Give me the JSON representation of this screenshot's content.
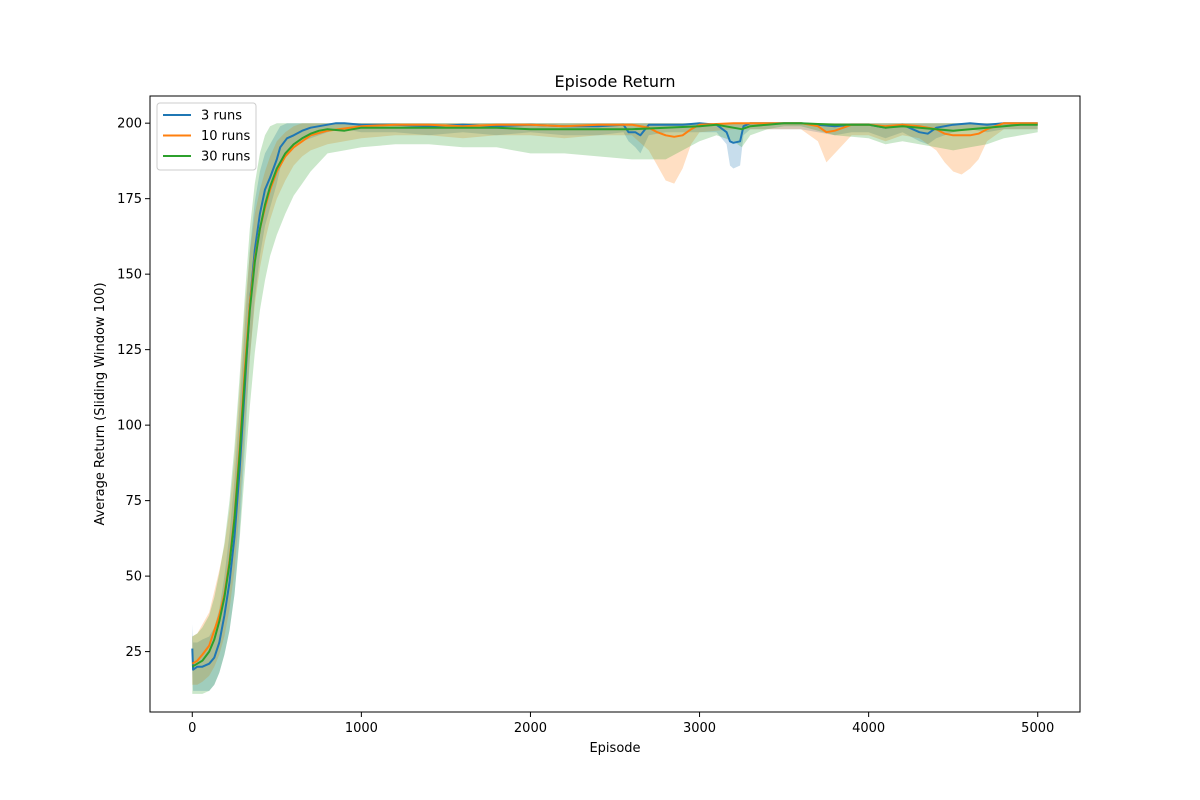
{
  "chart_data": {
    "type": "line",
    "title": "Episode Return",
    "xlabel": "Episode",
    "ylabel": "Average Return (Sliding Window 100)",
    "xlim": [
      -250,
      5250
    ],
    "ylim": [
      5,
      209
    ],
    "xticks": [
      0,
      1000,
      2000,
      3000,
      4000,
      5000
    ],
    "yticks": [
      25,
      50,
      75,
      100,
      125,
      150,
      175,
      200
    ],
    "grid": false,
    "legend_position": "top-left",
    "series": [
      {
        "name": "3 runs",
        "color": "#1f77b4",
        "x": [
          0,
          5,
          30,
          60,
          100,
          130,
          160,
          190,
          220,
          250,
          280,
          310,
          340,
          370,
          400,
          430,
          460,
          500,
          520,
          560,
          600,
          650,
          700,
          750,
          800,
          850,
          900,
          1000,
          1200,
          1400,
          1600,
          1800,
          2000,
          2200,
          2400,
          2550,
          2580,
          2620,
          2650,
          2700,
          2800,
          2900,
          3000,
          3100,
          3160,
          3180,
          3200,
          3240,
          3260,
          3300,
          3400,
          3600,
          3700,
          3800,
          3900,
          4000,
          4100,
          4200,
          4300,
          4350,
          4400,
          4500,
          4600,
          4700,
          4800,
          5000
        ],
        "mean": [
          26,
          19,
          20,
          20,
          21,
          23,
          28,
          37,
          48,
          63,
          85,
          112,
          140,
          158,
          170,
          178,
          182,
          188,
          192,
          195,
          196,
          197.5,
          198.5,
          199,
          199.5,
          200,
          200,
          199.5,
          199.5,
          199,
          199.5,
          199,
          199.5,
          199,
          199,
          199.5,
          197,
          197,
          196,
          199.5,
          199.5,
          199.5,
          200,
          199.5,
          197,
          194,
          193.5,
          194,
          199,
          200,
          200,
          200,
          199.5,
          199,
          199.5,
          199.5,
          198.5,
          199.5,
          197,
          196.5,
          198.5,
          199.5,
          200,
          199.5,
          200,
          200
        ],
        "lower": [
          18,
          12,
          12,
          12,
          12,
          14,
          18,
          24,
          32,
          44,
          64,
          92,
          122,
          142,
          156,
          166,
          172,
          180,
          185,
          190,
          192,
          194,
          195,
          196,
          197,
          198,
          198,
          197,
          197,
          196,
          197,
          196,
          197,
          196,
          196,
          197,
          194,
          192,
          190,
          196,
          197,
          197,
          197,
          197,
          193,
          186,
          185,
          186,
          196,
          198,
          198,
          198,
          197,
          196,
          197,
          197,
          195,
          197,
          194,
          193,
          195,
          197,
          198,
          197,
          198,
          198
        ],
        "upper": [
          34,
          28,
          28,
          29,
          30,
          33,
          39,
          50,
          64,
          82,
          106,
          132,
          158,
          174,
          184,
          190,
          193,
          197,
          199,
          200,
          200,
          200,
          200,
          200,
          200,
          200,
          200,
          200,
          200,
          200,
          200,
          200,
          200,
          200,
          200,
          200,
          200,
          200,
          200,
          200,
          200,
          200,
          200,
          200,
          200,
          200,
          200,
          200,
          200,
          200,
          200,
          200,
          200,
          200,
          200,
          200,
          200,
          200,
          200,
          200,
          200,
          200,
          200,
          200,
          200,
          200
        ]
      },
      {
        "name": "10 runs",
        "color": "#ff7f0e",
        "x": [
          0,
          30,
          60,
          100,
          130,
          160,
          190,
          220,
          250,
          280,
          310,
          340,
          370,
          400,
          430,
          460,
          500,
          550,
          600,
          650,
          700,
          800,
          1000,
          1200,
          1400,
          1600,
          1800,
          2000,
          2200,
          2400,
          2600,
          2700,
          2750,
          2800,
          2850,
          2900,
          2950,
          3000,
          3200,
          3400,
          3600,
          3700,
          3750,
          3800,
          3900,
          4000,
          4100,
          4200,
          4300,
          4400,
          4450,
          4500,
          4550,
          4600,
          4650,
          4700,
          4800,
          5000
        ],
        "mean": [
          21,
          22,
          24,
          27,
          32,
          37,
          44,
          55,
          70,
          92,
          118,
          140,
          155,
          165,
          172,
          178,
          184,
          189,
          192,
          194,
          196,
          197.5,
          199,
          199.5,
          199.5,
          199,
          199.5,
          199.5,
          199,
          199.5,
          199.5,
          198.5,
          197,
          196,
          195.5,
          196,
          198,
          199.5,
          200,
          200,
          200,
          199,
          197,
          197.5,
          199.5,
          199.5,
          199,
          199.5,
          199,
          198,
          196.5,
          196,
          196,
          196,
          196.5,
          198,
          200,
          200
        ],
        "lower": [
          14,
          14,
          15,
          17,
          20,
          24,
          30,
          39,
          52,
          72,
          98,
          122,
          140,
          152,
          161,
          168,
          175,
          181,
          186,
          189,
          191,
          193,
          195,
          196,
          196,
          195,
          196,
          196,
          195,
          196,
          196,
          191,
          186,
          181,
          180,
          185,
          193,
          197,
          198,
          198,
          198,
          194,
          187,
          190,
          196,
          196,
          194,
          196,
          195,
          191,
          187,
          184,
          183,
          185,
          188,
          194,
          198,
          198
        ],
        "upper": [
          30,
          31,
          34,
          38,
          45,
          52,
          60,
          72,
          89,
          112,
          138,
          157,
          170,
          178,
          184,
          189,
          194,
          197,
          199,
          200,
          200,
          200,
          200,
          200,
          200,
          200,
          200,
          200,
          200,
          200,
          200,
          200,
          200,
          200,
          200,
          200,
          200,
          200,
          200,
          200,
          200,
          200,
          200,
          200,
          200,
          200,
          200,
          200,
          200,
          200,
          200,
          200,
          200,
          200,
          200,
          200,
          200,
          200
        ]
      },
      {
        "name": "30 runs",
        "color": "#2ca02c",
        "x": [
          0,
          30,
          60,
          100,
          130,
          160,
          190,
          220,
          250,
          280,
          310,
          340,
          370,
          400,
          430,
          460,
          500,
          550,
          600,
          650,
          700,
          750,
          800,
          900,
          1000,
          1200,
          1400,
          1600,
          1800,
          2000,
          2200,
          2400,
          2600,
          2800,
          3000,
          3100,
          3200,
          3250,
          3300,
          3400,
          3500,
          3600,
          3800,
          4000,
          4100,
          4200,
          4300,
          4400,
          4500,
          4600,
          4700,
          4800,
          4900,
          5000
        ],
        "mean": [
          20,
          21,
          22,
          25,
          29,
          35,
          43,
          54,
          69,
          90,
          115,
          138,
          154,
          165,
          173,
          179,
          185,
          190,
          193,
          195,
          196.5,
          197.5,
          198,
          197.5,
          198.5,
          198.5,
          198.5,
          198.5,
          198.5,
          198,
          198,
          198,
          198,
          198.5,
          199,
          199.5,
          198.5,
          198,
          199,
          199.5,
          200,
          200,
          199.5,
          199.5,
          198.5,
          199,
          198.5,
          198,
          197.5,
          198,
          198.5,
          199,
          199.5,
          199.5
        ],
        "lower": [
          11,
          11,
          11,
          12,
          14,
          18,
          24,
          32,
          44,
          62,
          84,
          106,
          124,
          138,
          148,
          156,
          163,
          170,
          176,
          180,
          184,
          187,
          190,
          191,
          192,
          193,
          193,
          192,
          192,
          190,
          190,
          189,
          188,
          188,
          194,
          196,
          194,
          192,
          196,
          198,
          199,
          199,
          196,
          195,
          193,
          194,
          193,
          192,
          191,
          192,
          193,
          195,
          196,
          197
        ],
        "upper": [
          30,
          31,
          33,
          37,
          43,
          51,
          61,
          75,
          93,
          116,
          142,
          165,
          180,
          190,
          196,
          199,
          200,
          200,
          200,
          200,
          200,
          200,
          200,
          200,
          200,
          200,
          200,
          200,
          200,
          200,
          200,
          200,
          200,
          200,
          200,
          200,
          200,
          200,
          200,
          200,
          200,
          200,
          200,
          200,
          200,
          200,
          200,
          200,
          200,
          200,
          200,
          200,
          200,
          200
        ]
      }
    ]
  }
}
